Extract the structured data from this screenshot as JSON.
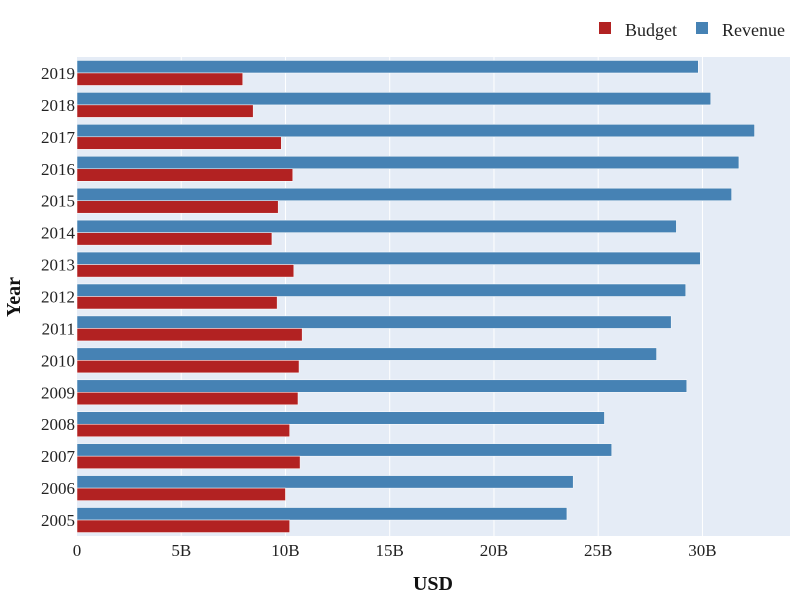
{
  "chart_data": {
    "type": "bar",
    "orientation": "horizontal",
    "categories": [
      "2005",
      "2006",
      "2007",
      "2008",
      "2009",
      "2010",
      "2011",
      "2012",
      "2013",
      "2014",
      "2015",
      "2016",
      "2017",
      "2018",
      "2019"
    ],
    "series": [
      {
        "name": "Budget",
        "color": "#b22222",
        "values": [
          10.2,
          10.0,
          10.7,
          10.2,
          10.6,
          10.65,
          10.8,
          9.6,
          10.4,
          9.35,
          9.65,
          10.35,
          9.8,
          8.45,
          7.95
        ]
      },
      {
        "name": "Revenue",
        "color": "#4682b4",
        "values": [
          23.5,
          23.8,
          25.65,
          25.3,
          29.25,
          27.8,
          28.5,
          29.2,
          29.9,
          28.75,
          31.4,
          31.75,
          32.5,
          30.4,
          29.8
        ]
      }
    ],
    "xlabel": "USD",
    "ylabel": "Year",
    "xlim": [
      0,
      34.2
    ],
    "xticks": [
      0,
      5,
      10,
      15,
      20,
      25,
      30
    ],
    "xtick_labels": [
      "0",
      "5B",
      "10B",
      "15B",
      "20B",
      "25B",
      "30B"
    ],
    "grid": true,
    "legend_position": "top-right",
    "plot_background": "#e5ecf6"
  }
}
